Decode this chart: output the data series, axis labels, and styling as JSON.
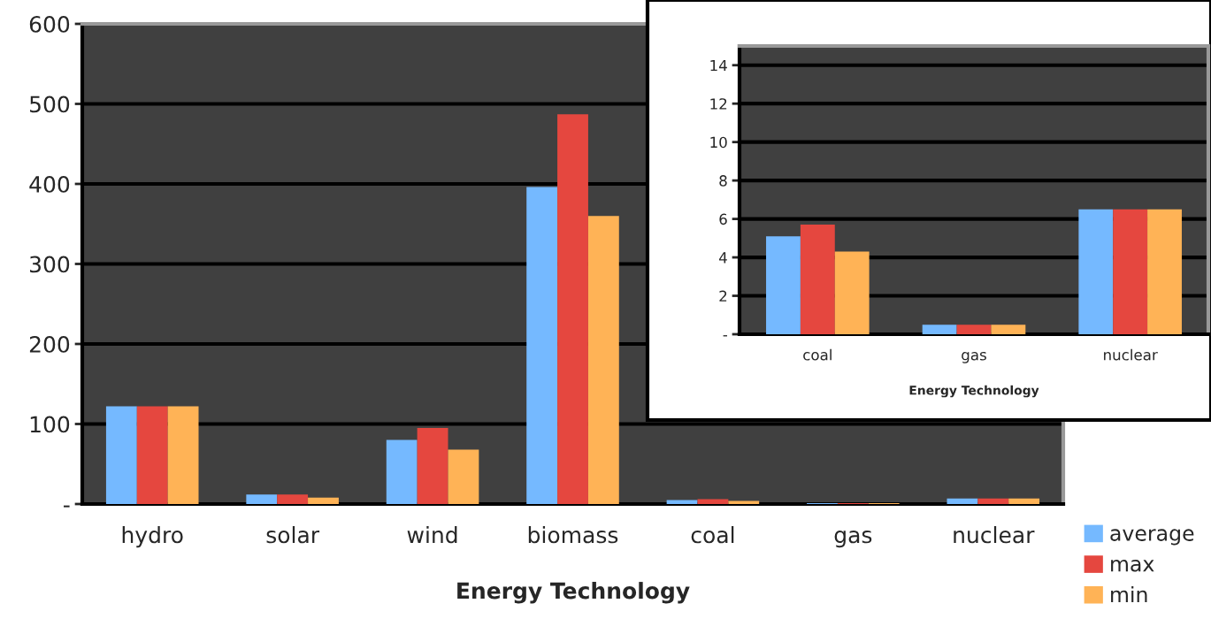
{
  "chart_data": [
    {
      "type": "bar",
      "xlabel": "Energy Technology",
      "categories": [
        "hydro",
        "solar",
        "wind",
        "biomass",
        "coal",
        "gas",
        "nuclear"
      ],
      "series": [
        {
          "name": "average",
          "color": "#75b9ff",
          "values": [
            122,
            12,
            80,
            396,
            5,
            1,
            7
          ]
        },
        {
          "name": "max",
          "color": "#e5473f",
          "values": [
            122,
            12,
            95,
            487,
            6,
            1,
            7
          ]
        },
        {
          "name": "min",
          "color": "#ffb356",
          "values": [
            122,
            8,
            68,
            360,
            4,
            1,
            7
          ]
        }
      ],
      "ylim": [
        0,
        600
      ],
      "yticks": [
        {
          "value": 0,
          "label": "-"
        },
        100,
        200,
        300,
        400,
        500,
        600
      ],
      "grid": "y",
      "legend": "right"
    },
    {
      "type": "bar",
      "xlabel": "Energy Technology",
      "categories": [
        "coal",
        "gas",
        "nuclear"
      ],
      "series": [
        {
          "color": "#75b9ff",
          "values": [
            5.1,
            0.5,
            6.5
          ]
        },
        {
          "color": "#e5473f",
          "values": [
            5.7,
            0.5,
            6.5
          ]
        },
        {
          "color": "#ffb356",
          "values": [
            4.3,
            0.5,
            6.5
          ]
        }
      ],
      "ylim": [
        0,
        15
      ],
      "yticks": [
        {
          "value": 0,
          "label": "-"
        },
        2,
        4,
        6,
        8,
        10,
        12,
        14
      ],
      "grid": "y"
    }
  ]
}
